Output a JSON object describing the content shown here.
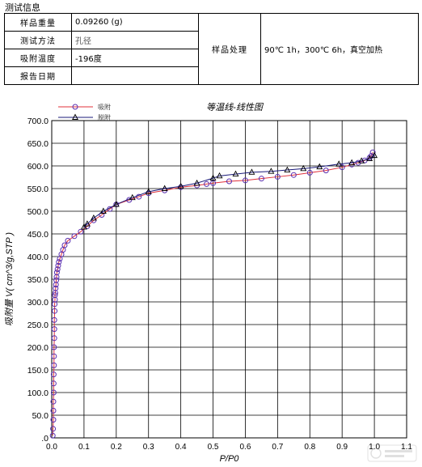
{
  "header": {
    "title": "测试信息"
  },
  "info_table": {
    "rows": [
      {
        "label": "样品重量",
        "value": "0.09260 (g)"
      },
      {
        "label": "测试方法",
        "value": "孔径"
      },
      {
        "label": "吸附温度",
        "value": "-196度"
      },
      {
        "label": "报告日期",
        "value": ""
      }
    ],
    "treatment_label": "样品处理",
    "treatment_value": "90℃ 1h，300℃ 6h，真空加热"
  },
  "chart_data": {
    "type": "line",
    "title": "等温线-线性图",
    "xlabel": "P/P0",
    "ylabel": "吸附量 V( cm^3/g,STP )",
    "xlim": [
      0.0,
      1.1
    ],
    "ylim": [
      0.0,
      700.0
    ],
    "x_ticks": [
      "0.0",
      "0.1",
      "0.2",
      "0.3",
      "0.4",
      "0.5",
      "0.6",
      "0.7",
      "0.8",
      "0.9",
      "1.0",
      "1.1"
    ],
    "y_ticks": [
      ".0",
      "50.0",
      "100.0",
      "150.0",
      "200.0",
      "250.0",
      "300.0",
      "350.0",
      "400.0",
      "450.0",
      "500.0",
      "550.0",
      "600.0",
      "650.0",
      "700.0"
    ],
    "grid": true,
    "legend_position": "top-left",
    "series": [
      {
        "name": "吸附",
        "color": "#e0303a",
        "marker": "circle",
        "marker_color": "#5a2fb0",
        "x": [
          0.003,
          0.004,
          0.005,
          0.005,
          0.005,
          0.006,
          0.006,
          0.006,
          0.007,
          0.007,
          0.007,
          0.008,
          0.008,
          0.008,
          0.009,
          0.009,
          0.01,
          0.01,
          0.011,
          0.012,
          0.013,
          0.014,
          0.015,
          0.016,
          0.018,
          0.02,
          0.022,
          0.025,
          0.03,
          0.035,
          0.04,
          0.05,
          0.07,
          0.09,
          0.11,
          0.13,
          0.155,
          0.18,
          0.2,
          0.24,
          0.27,
          0.3,
          0.35,
          0.4,
          0.45,
          0.48,
          0.5,
          0.55,
          0.6,
          0.65,
          0.7,
          0.75,
          0.8,
          0.85,
          0.9,
          0.93,
          0.95,
          0.97,
          0.985,
          0.99,
          0.995
        ],
        "y": [
          5,
          20,
          40,
          60,
          80,
          100,
          120,
          140,
          160,
          180,
          200,
          220,
          240,
          260,
          280,
          295,
          305,
          315,
          320,
          330,
          338,
          348,
          355,
          365,
          372,
          380,
          388,
          395,
          405,
          415,
          425,
          435,
          445,
          455,
          467,
          480,
          492,
          505,
          515,
          525,
          532,
          540,
          546,
          553,
          557,
          560,
          562,
          566,
          568,
          572,
          576,
          580,
          585,
          590,
          597,
          603,
          607,
          612,
          618,
          622,
          630
        ]
      },
      {
        "name": "脱附",
        "color": "#1a1a7a",
        "marker": "triangle",
        "marker_color": "#000000",
        "x": [
          1.0,
          0.985,
          0.96,
          0.93,
          0.89,
          0.83,
          0.78,
          0.73,
          0.68,
          0.62,
          0.57,
          0.52,
          0.5,
          0.45,
          0.4,
          0.35,
          0.3,
          0.25,
          0.2,
          0.16,
          0.13,
          0.11,
          0.1
        ],
        "y": [
          623,
          616,
          611,
          607,
          604,
          598,
          594,
          591,
          588,
          586,
          582,
          578,
          573,
          562,
          555,
          550,
          543,
          530,
          515,
          500,
          485,
          472,
          465
        ]
      }
    ]
  },
  "watermark": {
    "icon": "logo-watermark"
  }
}
